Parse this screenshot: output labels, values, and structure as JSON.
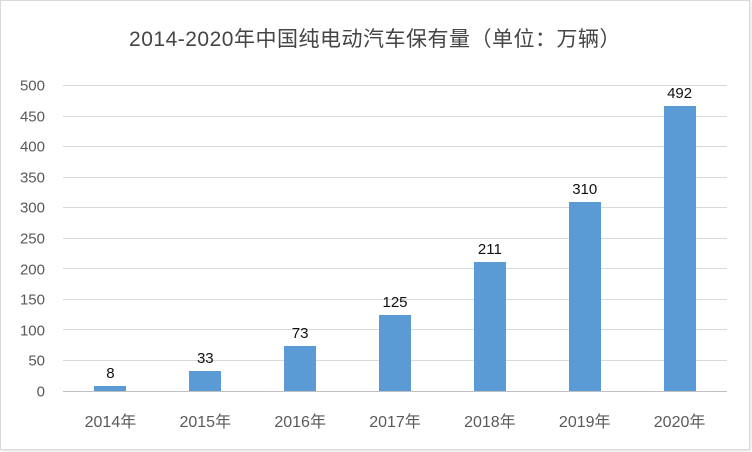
{
  "chart_data": {
    "type": "bar",
    "title": "2014-2020年中国纯电动汽车保有量（单位：万辆）",
    "categories": [
      "2014年",
      "2015年",
      "2016年",
      "2017年",
      "2018年",
      "2019年",
      "2020年"
    ],
    "values": [
      8,
      33,
      73,
      125,
      211,
      310,
      492
    ],
    "xlabel": "",
    "ylabel": "",
    "ylim": [
      0,
      500
    ],
    "yticks": [
      0,
      50,
      100,
      150,
      200,
      250,
      300,
      350,
      400,
      450,
      500
    ],
    "grid": true,
    "legend": "none",
    "colors": {
      "bar": "#5b9bd5",
      "gridline": "#d9d9d9",
      "axis_line": "#bfbfbf",
      "tick_text": "#595959",
      "value_text": "#111111",
      "title_text": "#454545"
    }
  }
}
